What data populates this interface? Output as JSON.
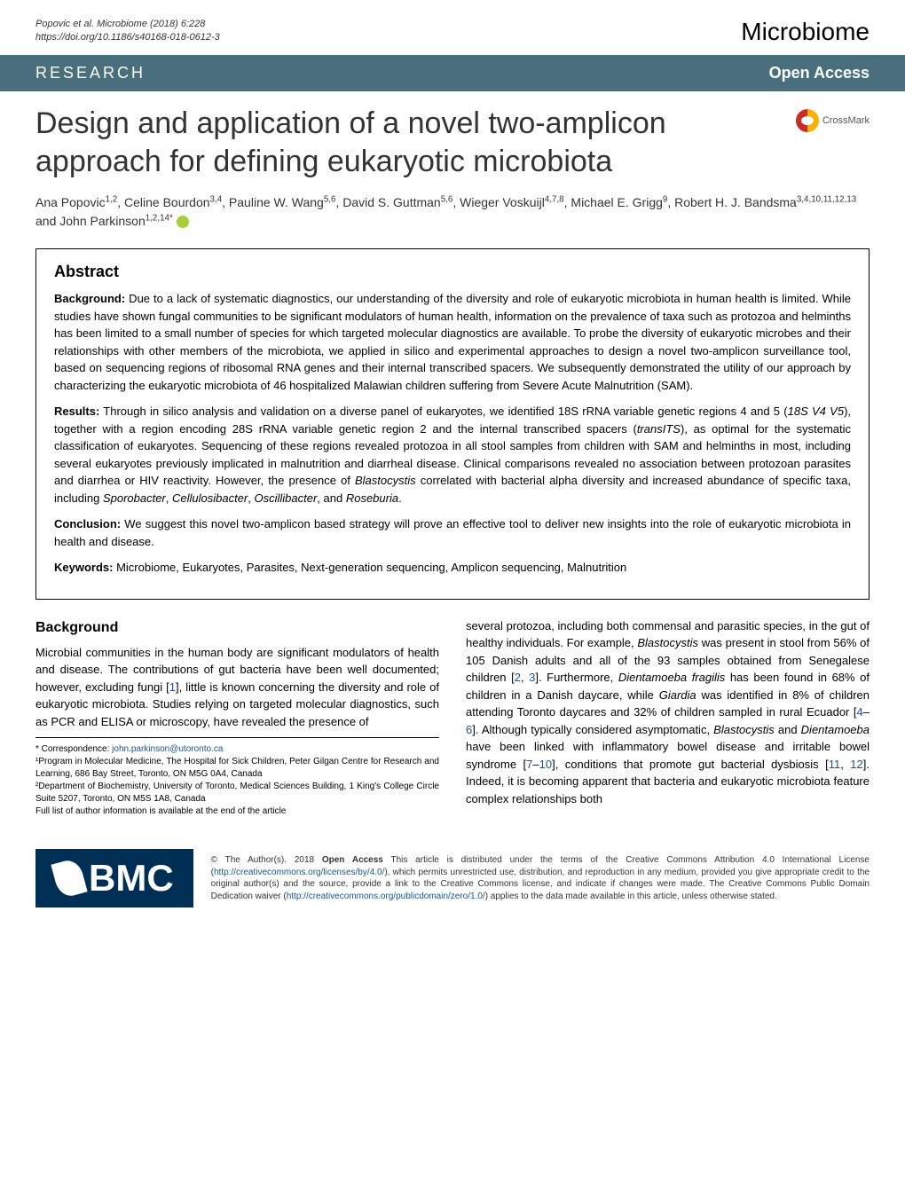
{
  "header": {
    "citation_line1": "Popovic et al. Microbiome          (2018) 6:228",
    "citation_line2": "https://doi.org/10.1186/s40168-018-0612-3",
    "journal": "Microbiome"
  },
  "banner": {
    "research": "RESEARCH",
    "open_access": "Open Access"
  },
  "crossmark": {
    "label": "CrossMark"
  },
  "title": "Design and application of a novel two-amplicon approach for defining eukaryotic microbiota",
  "authors_html": "Ana Popovic<sup>1,2</sup>, Celine Bourdon<sup>3,4</sup>, Pauline W. Wang<sup>5,6</sup>, David S. Guttman<sup>5,6</sup>, Wieger Voskuijl<sup>4,7,8</sup>, Michael E. Grigg<sup>9</sup>, Robert H. J. Bandsma<sup>3,4,10,11,12,13</sup> and John Parkinson<sup>1,2,14*</sup>",
  "abstract": {
    "heading": "Abstract",
    "background_label": "Background:",
    "background_text": " Due to a lack of systematic diagnostics, our understanding of the diversity and role of eukaryotic microbiota in human health is limited. While studies have shown fungal communities to be significant modulators of human health, information on the prevalence of taxa such as protozoa and helminths has been limited to a small number of species for which targeted molecular diagnostics are available. To probe the diversity of eukaryotic microbes and their relationships with other members of the microbiota, we applied in silico and experimental approaches to design a novel two-amplicon surveillance tool, based on sequencing regions of ribosomal RNA genes and their internal transcribed spacers. We subsequently demonstrated the utility of our approach by characterizing the eukaryotic microbiota of 46 hospitalized Malawian children suffering from Severe Acute Malnutrition (SAM).",
    "results_label": "Results:",
    "results_text": " Through in silico analysis and validation on a diverse panel of eukaryotes, we identified 18S rRNA variable genetic regions 4 and 5 (18S V4 V5), together with a region encoding 28S rRNA variable genetic region 2 and the internal transcribed spacers (transITS), as optimal for the systematic classification of eukaryotes. Sequencing of these regions revealed protozoa in all stool samples from children with SAM and helminths in most, including several eukaryotes previously implicated in malnutrition and diarrheal disease. Clinical comparisons revealed no association between protozoan parasites and diarrhea or HIV reactivity. However, the presence of Blastocystis correlated with bacterial alpha diversity and increased abundance of specific taxa, including Sporobacter, Cellulosibacter, Oscillibacter, and Roseburia.",
    "conclusion_label": "Conclusion:",
    "conclusion_text": " We suggest this novel two-amplicon based strategy will prove an effective tool to deliver new insights into the role of eukaryotic microbiota in health and disease.",
    "keywords_label": "Keywords:",
    "keywords_text": " Microbiome, Eukaryotes, Parasites, Next-generation sequencing, Amplicon sequencing, Malnutrition"
  },
  "background_section": {
    "heading": "Background",
    "col_left": "Microbial communities in the human body are significant modulators of health and disease. The contributions of gut bacteria have been well documented; however, excluding fungi [1], little is known concerning the diversity and role of eukaryotic microbiota. Studies relying on targeted molecular diagnostics, such as PCR and ELISA or microscopy, have revealed the presence of",
    "col_right": "several protozoa, including both commensal and parasitic species, in the gut of healthy individuals. For example, Blastocystis was present in stool from 56% of 105 Danish adults and all of the 93 samples obtained from Senegalese children [2, 3]. Furthermore, Dientamoeba fragilis has been found in 68% of children in a Danish daycare, while Giardia was identified in 8% of children attending Toronto daycares and 32% of children sampled in rural Ecuador [4–6]. Although typically considered asymptomatic, Blastocystis and Dientamoeba have been linked with inflammatory bowel disease and irritable bowel syndrome [7–10], conditions that promote gut bacterial dysbiosis [11, 12]. Indeed, it is becoming apparent that bacteria and eukaryotic microbiota feature complex relationships both"
  },
  "footnotes": {
    "correspondence_label": "* Correspondence: ",
    "correspondence_email": "john.parkinson@utoronto.ca",
    "aff1": "¹Program in Molecular Medicine, The Hospital for Sick Children, Peter Gilgan Centre for Research and Learning, 686 Bay Street, Toronto, ON M5G 0A4, Canada",
    "aff2": "²Department of Biochemistry, University of Toronto, Medical Sciences Building, 1 King's College Circle Suite 5207, Toronto, ON M5S 1A8, Canada",
    "full_list": "Full list of author information is available at the end of the article"
  },
  "footer": {
    "bmc": "BMC",
    "license": "© The Author(s). 2018 Open Access This article is distributed under the terms of the Creative Commons Attribution 4.0 International License (http://creativecommons.org/licenses/by/4.0/), which permits unrestricted use, distribution, and reproduction in any medium, provided you give appropriate credit to the original author(s) and the source, provide a link to the Creative Commons license, and indicate if changes were made. The Creative Commons Public Domain Dedication waiver (http://creativecommons.org/publicdomain/zero/1.0/) applies to the data made available in this article, unless otherwise stated."
  },
  "colors": {
    "banner_bg": "#496e7c",
    "link": "#1a5490",
    "bmc_bg": "#002f56",
    "orcid": "#a6ce39"
  }
}
